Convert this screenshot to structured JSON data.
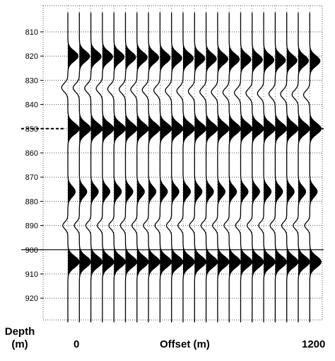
{
  "chart_data": {
    "type": "line",
    "subtype": "seismic wiggle trace display",
    "title": "",
    "ylabel": "Depth",
    "yunit": "(m)",
    "xlabel": "Offset (m)",
    "x_tick_labels": [
      "0",
      "1200"
    ],
    "xlim": [
      0,
      1200
    ],
    "ylim": [
      802,
      930
    ],
    "y_axis_inverted": true,
    "y_ticks": [
      810,
      820,
      830,
      840,
      850,
      860,
      870,
      880,
      890,
      900,
      910,
      920
    ],
    "trace_count": 22,
    "trace_offsets": [
      0,
      57.1,
      114.3,
      171.4,
      228.6,
      285.7,
      342.9,
      400,
      457.1,
      514.3,
      571.4,
      628.6,
      685.7,
      742.9,
      800,
      857.1,
      914.3,
      971.4,
      1028.6,
      1085.7,
      1142.9,
      1200
    ],
    "grid": "dotted, vertical at traces and horizontal at depth ticks",
    "fill": "positive lobes filled black",
    "reflector_markers": [
      {
        "depth": 850,
        "style": "dashed"
      },
      {
        "depth": 900,
        "style": "solid"
      }
    ],
    "events": [
      {
        "depth": 820,
        "note": "upper peak near zero offset, moving toward event at 822 with offset",
        "depth_at_max_offset": 822,
        "amplitude": 0.9,
        "width": 3.0
      },
      {
        "depth": 833,
        "note": "trough near zero offset",
        "depth_at_max_offset": 836,
        "amplitude": -0.55,
        "width": 2.4
      },
      {
        "depth": 850,
        "note": "flat strong reflection",
        "depth_at_max_offset": 850,
        "amplitude": 1.0,
        "width": 3.2
      },
      {
        "depth": 876,
        "note": "multiple / peak",
        "depth_at_max_offset": 876,
        "amplitude": 0.65,
        "width": 3.0
      },
      {
        "depth": 890,
        "note": "trough",
        "depth_at_max_offset": 890,
        "amplitude": -0.45,
        "width": 2.0
      },
      {
        "depth": 905,
        "note": "flat strong reflection",
        "depth_at_max_offset": 905,
        "amplitude": 1.0,
        "width": 3.2
      }
    ]
  },
  "labels": {
    "depth_line1": "Depth",
    "depth_line2": "(m)",
    "x_min": "0",
    "x_title": "Offset (m)",
    "x_max": "1200"
  },
  "colors": {
    "trace": "#000000",
    "grid": "#555555",
    "background": "#ffffff"
  }
}
